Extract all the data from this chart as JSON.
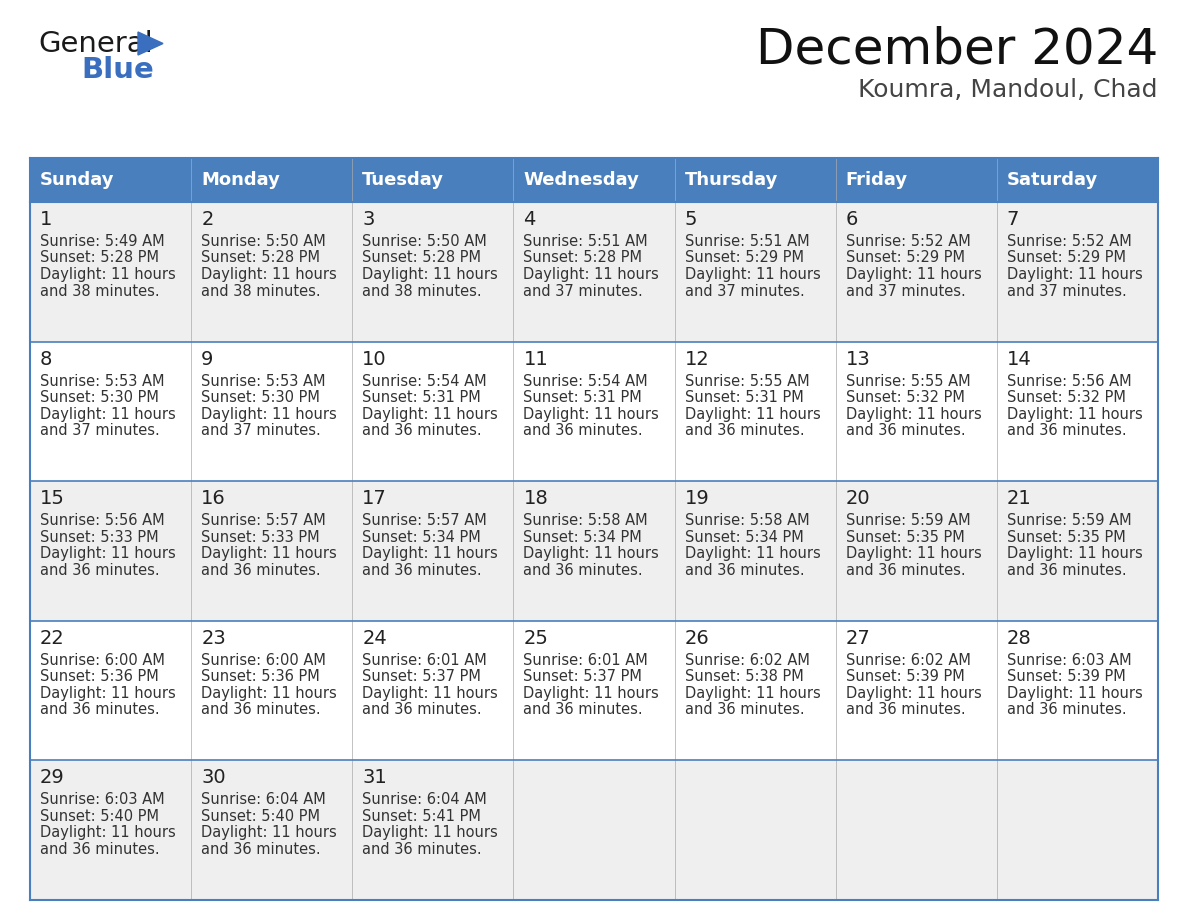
{
  "title": "December 2024",
  "subtitle": "Koumra, Mandoul, Chad",
  "header_color": "#4a7fbe",
  "header_text_color": "#FFFFFF",
  "cell_bg_even": "#EFEFEF",
  "cell_bg_odd": "#FFFFFF",
  "day_number_color": "#222222",
  "text_color": "#333333",
  "border_color": "#4a7fbe",
  "grid_color": "#AAAAAA",
  "days_of_week": [
    "Sunday",
    "Monday",
    "Tuesday",
    "Wednesday",
    "Thursday",
    "Friday",
    "Saturday"
  ],
  "weeks": [
    [
      {
        "day": "1",
        "sunrise": "5:49 AM",
        "sunset": "5:28 PM",
        "dl1": "Daylight: 11 hours",
        "dl2": "and 38 minutes."
      },
      {
        "day": "2",
        "sunrise": "5:50 AM",
        "sunset": "5:28 PM",
        "dl1": "Daylight: 11 hours",
        "dl2": "and 38 minutes."
      },
      {
        "day": "3",
        "sunrise": "5:50 AM",
        "sunset": "5:28 PM",
        "dl1": "Daylight: 11 hours",
        "dl2": "and 38 minutes."
      },
      {
        "day": "4",
        "sunrise": "5:51 AM",
        "sunset": "5:28 PM",
        "dl1": "Daylight: 11 hours",
        "dl2": "and 37 minutes."
      },
      {
        "day": "5",
        "sunrise": "5:51 AM",
        "sunset": "5:29 PM",
        "dl1": "Daylight: 11 hours",
        "dl2": "and 37 minutes."
      },
      {
        "day": "6",
        "sunrise": "5:52 AM",
        "sunset": "5:29 PM",
        "dl1": "Daylight: 11 hours",
        "dl2": "and 37 minutes."
      },
      {
        "day": "7",
        "sunrise": "5:52 AM",
        "sunset": "5:29 PM",
        "dl1": "Daylight: 11 hours",
        "dl2": "and 37 minutes."
      }
    ],
    [
      {
        "day": "8",
        "sunrise": "5:53 AM",
        "sunset": "5:30 PM",
        "dl1": "Daylight: 11 hours",
        "dl2": "and 37 minutes."
      },
      {
        "day": "9",
        "sunrise": "5:53 AM",
        "sunset": "5:30 PM",
        "dl1": "Daylight: 11 hours",
        "dl2": "and 37 minutes."
      },
      {
        "day": "10",
        "sunrise": "5:54 AM",
        "sunset": "5:31 PM",
        "dl1": "Daylight: 11 hours",
        "dl2": "and 36 minutes."
      },
      {
        "day": "11",
        "sunrise": "5:54 AM",
        "sunset": "5:31 PM",
        "dl1": "Daylight: 11 hours",
        "dl2": "and 36 minutes."
      },
      {
        "day": "12",
        "sunrise": "5:55 AM",
        "sunset": "5:31 PM",
        "dl1": "Daylight: 11 hours",
        "dl2": "and 36 minutes."
      },
      {
        "day": "13",
        "sunrise": "5:55 AM",
        "sunset": "5:32 PM",
        "dl1": "Daylight: 11 hours",
        "dl2": "and 36 minutes."
      },
      {
        "day": "14",
        "sunrise": "5:56 AM",
        "sunset": "5:32 PM",
        "dl1": "Daylight: 11 hours",
        "dl2": "and 36 minutes."
      }
    ],
    [
      {
        "day": "15",
        "sunrise": "5:56 AM",
        "sunset": "5:33 PM",
        "dl1": "Daylight: 11 hours",
        "dl2": "and 36 minutes."
      },
      {
        "day": "16",
        "sunrise": "5:57 AM",
        "sunset": "5:33 PM",
        "dl1": "Daylight: 11 hours",
        "dl2": "and 36 minutes."
      },
      {
        "day": "17",
        "sunrise": "5:57 AM",
        "sunset": "5:34 PM",
        "dl1": "Daylight: 11 hours",
        "dl2": "and 36 minutes."
      },
      {
        "day": "18",
        "sunrise": "5:58 AM",
        "sunset": "5:34 PM",
        "dl1": "Daylight: 11 hours",
        "dl2": "and 36 minutes."
      },
      {
        "day": "19",
        "sunrise": "5:58 AM",
        "sunset": "5:34 PM",
        "dl1": "Daylight: 11 hours",
        "dl2": "and 36 minutes."
      },
      {
        "day": "20",
        "sunrise": "5:59 AM",
        "sunset": "5:35 PM",
        "dl1": "Daylight: 11 hours",
        "dl2": "and 36 minutes."
      },
      {
        "day": "21",
        "sunrise": "5:59 AM",
        "sunset": "5:35 PM",
        "dl1": "Daylight: 11 hours",
        "dl2": "and 36 minutes."
      }
    ],
    [
      {
        "day": "22",
        "sunrise": "6:00 AM",
        "sunset": "5:36 PM",
        "dl1": "Daylight: 11 hours",
        "dl2": "and 36 minutes."
      },
      {
        "day": "23",
        "sunrise": "6:00 AM",
        "sunset": "5:36 PM",
        "dl1": "Daylight: 11 hours",
        "dl2": "and 36 minutes."
      },
      {
        "day": "24",
        "sunrise": "6:01 AM",
        "sunset": "5:37 PM",
        "dl1": "Daylight: 11 hours",
        "dl2": "and 36 minutes."
      },
      {
        "day": "25",
        "sunrise": "6:01 AM",
        "sunset": "5:37 PM",
        "dl1": "Daylight: 11 hours",
        "dl2": "and 36 minutes."
      },
      {
        "day": "26",
        "sunrise": "6:02 AM",
        "sunset": "5:38 PM",
        "dl1": "Daylight: 11 hours",
        "dl2": "and 36 minutes."
      },
      {
        "day": "27",
        "sunrise": "6:02 AM",
        "sunset": "5:39 PM",
        "dl1": "Daylight: 11 hours",
        "dl2": "and 36 minutes."
      },
      {
        "day": "28",
        "sunrise": "6:03 AM",
        "sunset": "5:39 PM",
        "dl1": "Daylight: 11 hours",
        "dl2": "and 36 minutes."
      }
    ],
    [
      {
        "day": "29",
        "sunrise": "6:03 AM",
        "sunset": "5:40 PM",
        "dl1": "Daylight: 11 hours",
        "dl2": "and 36 minutes."
      },
      {
        "day": "30",
        "sunrise": "6:04 AM",
        "sunset": "5:40 PM",
        "dl1": "Daylight: 11 hours",
        "dl2": "and 36 minutes."
      },
      {
        "day": "31",
        "sunrise": "6:04 AM",
        "sunset": "5:41 PM",
        "dl1": "Daylight: 11 hours",
        "dl2": "and 36 minutes."
      },
      null,
      null,
      null,
      null
    ]
  ],
  "logo_general_color": "#1a1a1a",
  "logo_blue_color": "#3A6EBF",
  "logo_triangle_color": "#3A6EBF",
  "title_fontsize": 36,
  "subtitle_fontsize": 18,
  "header_fontsize": 13,
  "day_num_fontsize": 14,
  "cell_text_fontsize": 10.5
}
